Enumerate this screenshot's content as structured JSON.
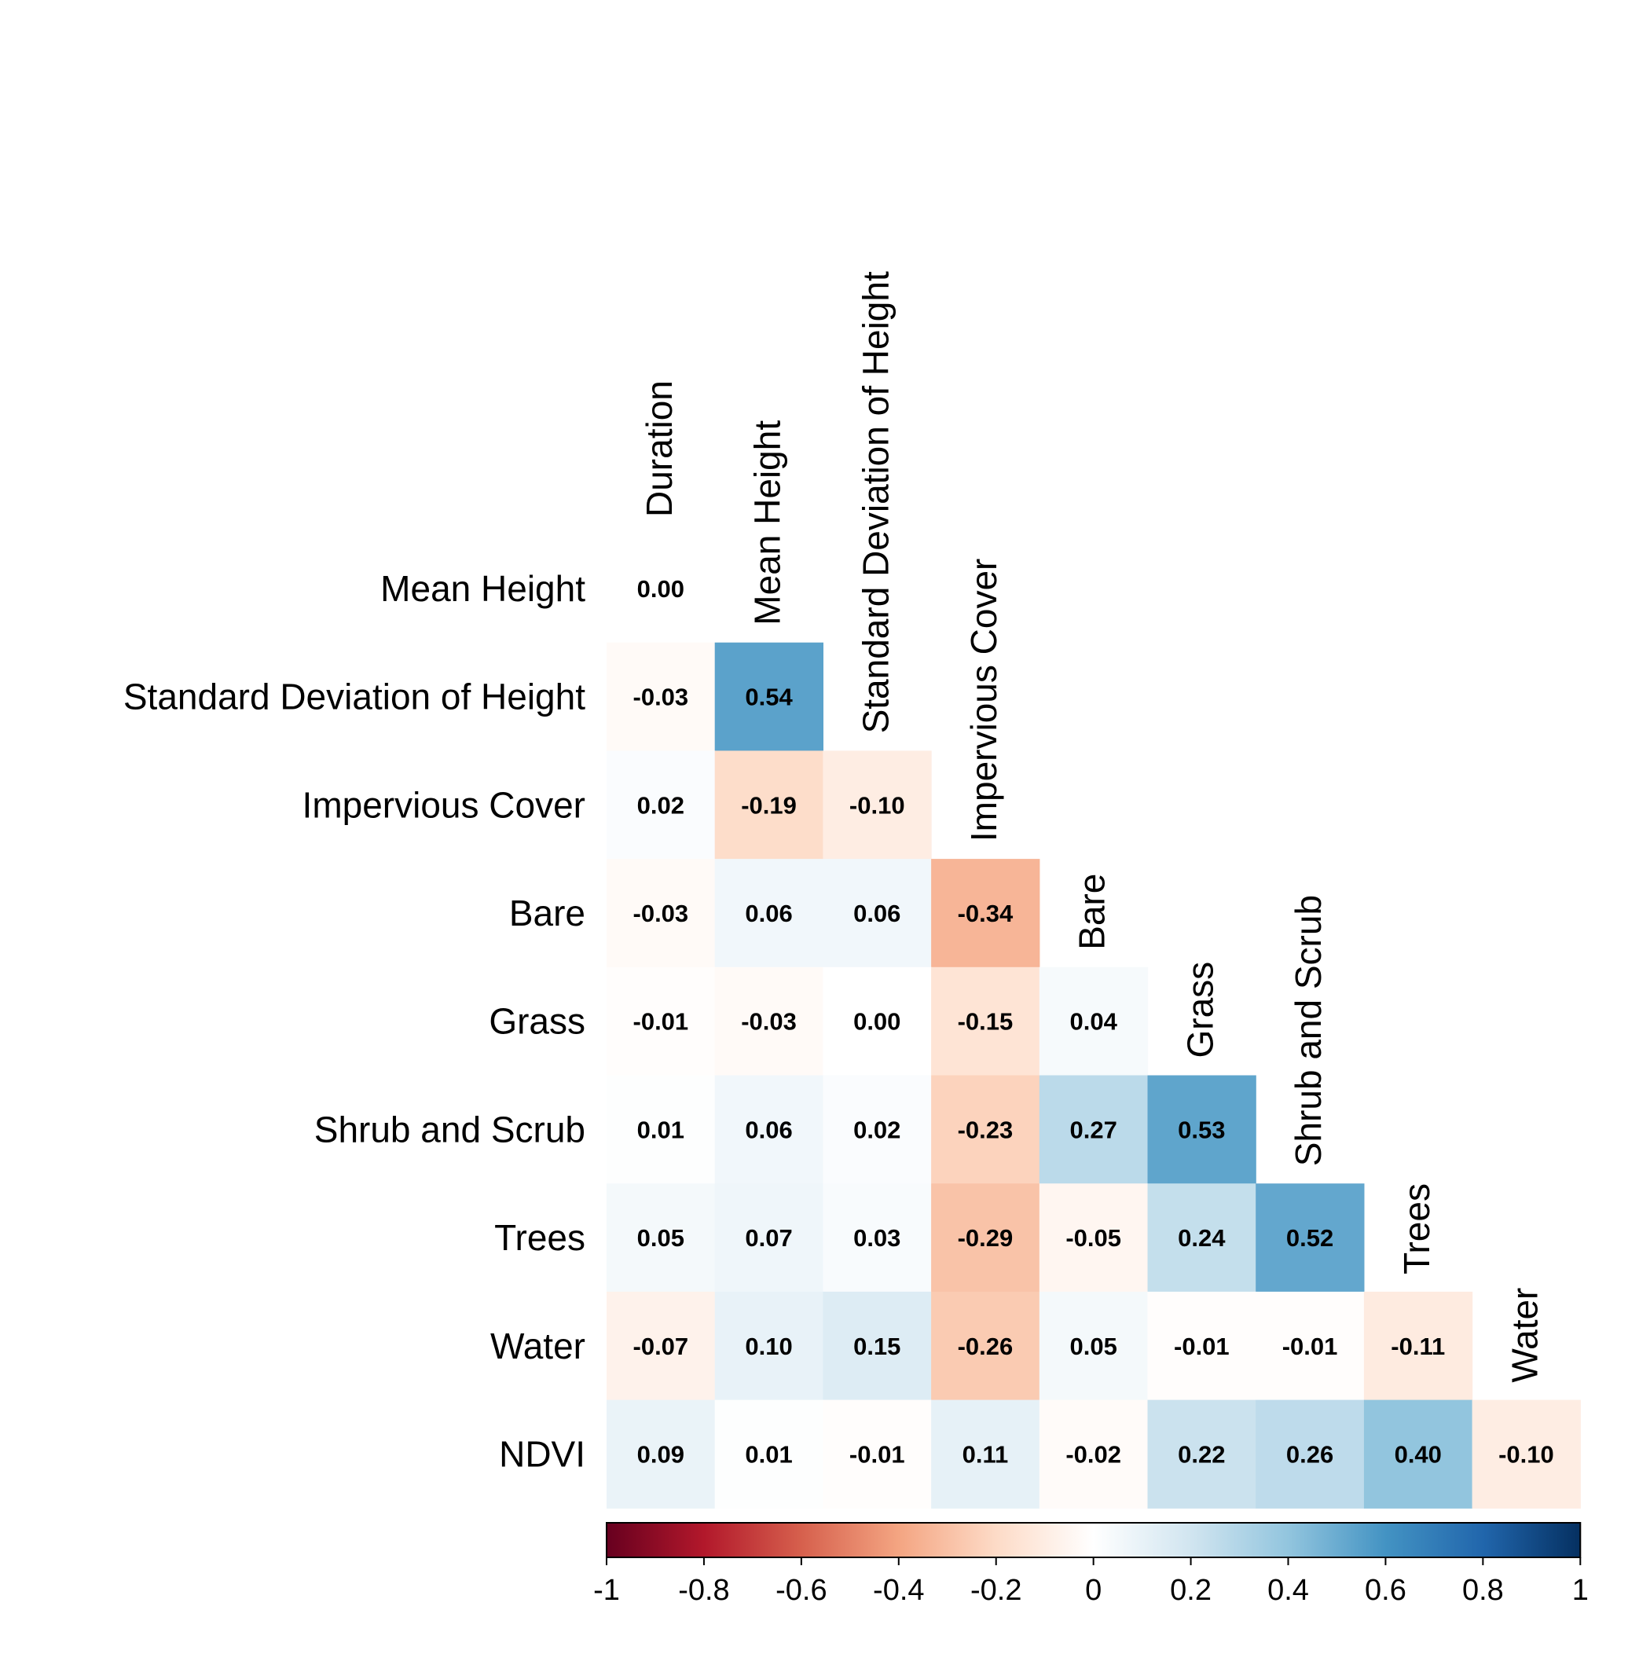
{
  "chart_data": {
    "type": "heatmap",
    "title": "",
    "layout": "lower-triangle",
    "column_labels": [
      "Duration",
      "Mean Height",
      "Standard Deviation of Height",
      "Impervious Cover",
      "Bare",
      "Grass",
      "Shrub and Scrub",
      "Trees",
      "Water"
    ],
    "row_labels": [
      "Mean Height",
      "Standard Deviation of Height",
      "Impervious Cover",
      "Bare",
      "Grass",
      "Shrub and Scrub",
      "Trees",
      "Water",
      "NDVI"
    ],
    "values": [
      [
        0.0
      ],
      [
        -0.03,
        0.54
      ],
      [
        0.02,
        -0.19,
        -0.1
      ],
      [
        -0.03,
        0.06,
        0.06,
        -0.34
      ],
      [
        -0.01,
        -0.03,
        0.0,
        -0.15,
        0.04
      ],
      [
        0.01,
        0.06,
        0.02,
        -0.23,
        0.27,
        0.53
      ],
      [
        0.05,
        0.07,
        0.03,
        -0.29,
        -0.05,
        0.24,
        0.52
      ],
      [
        -0.07,
        0.1,
        0.15,
        -0.26,
        0.05,
        -0.01,
        -0.01,
        -0.11
      ],
      [
        0.09,
        0.01,
        -0.01,
        0.11,
        -0.02,
        0.22,
        0.26,
        0.4,
        -0.1
      ]
    ],
    "value_labels": [
      [
        "0.00"
      ],
      [
        "-0.03",
        "0.54"
      ],
      [
        "0.02",
        "-0.19",
        "-0.10"
      ],
      [
        "-0.03",
        "0.06",
        "0.06",
        "-0.34"
      ],
      [
        "-0.01",
        "-0.03",
        "0.00",
        "-0.15",
        "0.04"
      ],
      [
        "0.01",
        "0.06",
        "0.02",
        "-0.23",
        "0.27",
        "0.53"
      ],
      [
        "0.05",
        "0.07",
        "0.03",
        "-0.29",
        "-0.05",
        "0.24",
        "0.52"
      ],
      [
        "-0.07",
        "0.10",
        "0.15",
        "-0.26",
        "0.05",
        "-0.01",
        "-0.01",
        "-0.11"
      ],
      [
        "0.09",
        "0.01",
        "-0.01",
        "0.11",
        "-0.02",
        "0.22",
        "0.26",
        "0.40",
        "-0.10"
      ]
    ],
    "color_scale": {
      "range": [
        -1,
        1
      ],
      "ticks": [
        -1,
        -0.8,
        -0.6,
        -0.4,
        -0.2,
        0,
        0.2,
        0.4,
        0.6,
        0.8,
        1
      ],
      "tick_labels": [
        "-1",
        "-0.8",
        "-0.6",
        "-0.4",
        "-0.2",
        "0",
        "0.2",
        "0.4",
        "0.6",
        "0.8",
        "1"
      ],
      "stops": [
        "#67001f",
        "#b2182b",
        "#d6604d",
        "#f4a582",
        "#fddbc7",
        "#ffffff",
        "#d1e5f0",
        "#92c5de",
        "#4393c3",
        "#2166ac",
        "#053061"
      ],
      "orientation": "horizontal",
      "placement": "bottom"
    }
  }
}
